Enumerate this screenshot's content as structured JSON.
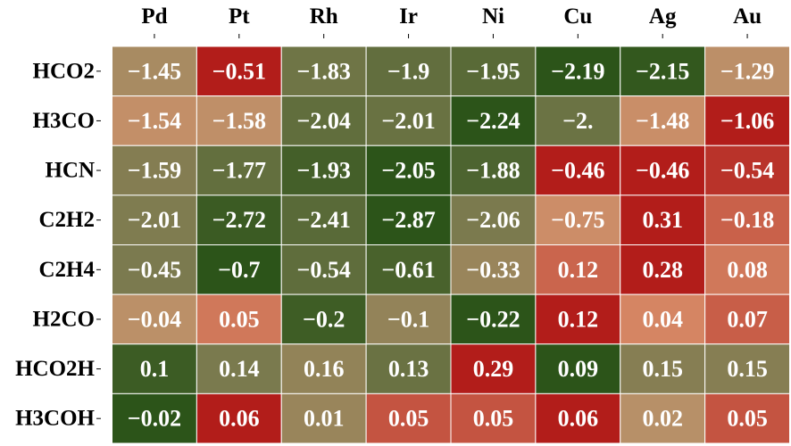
{
  "chart_data": {
    "type": "heatmap",
    "title": "",
    "xlabel": "",
    "ylabel": "",
    "columns": [
      "Pd",
      "Pt",
      "Rh",
      "Ir",
      "Ni",
      "Cu",
      "Ag",
      "Au"
    ],
    "rows": [
      "HCO2",
      "H3CO",
      "HCN",
      "C2H2",
      "C2H4",
      "H2CO",
      "HCO2H",
      "H3COH"
    ],
    "values": [
      [
        -1.45,
        -0.51,
        -1.83,
        -1.9,
        -1.95,
        -2.19,
        -2.15,
        -1.29
      ],
      [
        -1.54,
        -1.58,
        -2.04,
        -2.01,
        -2.24,
        -2.0,
        -1.48,
        -1.06
      ],
      [
        -1.59,
        -1.77,
        -1.93,
        -2.05,
        -1.88,
        -0.46,
        -0.46,
        -0.54
      ],
      [
        -2.01,
        -2.72,
        -2.41,
        -2.87,
        -2.06,
        -0.75,
        0.31,
        -0.18
      ],
      [
        -0.45,
        -0.7,
        -0.54,
        -0.61,
        -0.33,
        0.12,
        0.28,
        0.08
      ],
      [
        -0.04,
        0.05,
        -0.2,
        -0.1,
        -0.22,
        0.12,
        0.04,
        0.07
      ],
      [
        0.1,
        0.14,
        0.16,
        0.13,
        0.29,
        0.09,
        0.15,
        0.15
      ],
      [
        -0.02,
        0.06,
        0.01,
        0.05,
        0.05,
        0.06,
        0.02,
        0.05
      ]
    ],
    "labels": [
      [
        "−1.45",
        "−0.51",
        "−1.83",
        "−1.9",
        "−1.95",
        "−2.19",
        "−2.15",
        "−1.29"
      ],
      [
        "−1.54",
        "−1.58",
        "−2.04",
        "−2.01",
        "−2.24",
        "−2.",
        "−1.48",
        "−1.06"
      ],
      [
        "−1.59",
        "−1.77",
        "−1.93",
        "−2.05",
        "−1.88",
        "−0.46",
        "−0.46",
        "−0.54"
      ],
      [
        "−2.01",
        "−2.72",
        "−2.41",
        "−2.87",
        "−2.06",
        "−0.75",
        "0.31",
        "−0.18"
      ],
      [
        "−0.45",
        "−0.7",
        "−0.54",
        "−0.61",
        "−0.33",
        "0.12",
        "0.28",
        "0.08"
      ],
      [
        "−0.04",
        "0.05",
        "−0.2",
        "−0.1",
        "−0.22",
        "0.12",
        "0.04",
        "0.07"
      ],
      [
        "0.1",
        "0.14",
        "0.16",
        "0.13",
        "0.29",
        "0.09",
        "0.15",
        "0.15"
      ],
      [
        "−0.02",
        "0.06",
        "0.01",
        "0.05",
        "0.05",
        "0.06",
        "0.02",
        "0.05"
      ]
    ],
    "color_scale": {
      "scheme": "row-normalized, green (min) to tan to red (max)",
      "stops": [
        "#2c5419",
        "#7a7a4e",
        "#b79068",
        "#d78c68",
        "#b21d1a"
      ]
    }
  }
}
